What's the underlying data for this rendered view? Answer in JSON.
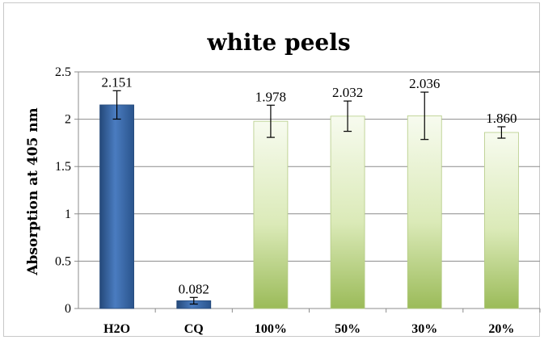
{
  "chart_data": {
    "type": "bar",
    "title": "white peels",
    "xlabel": "",
    "ylabel": "Absorption at 405 nm",
    "ylim": [
      0,
      2.5
    ],
    "yticks": [
      "0",
      "0.5",
      "1",
      "1.5",
      "2",
      "2.5"
    ],
    "grid": true,
    "categories": [
      "H2O",
      "CQ",
      "100%",
      "50%",
      "30%",
      "20%"
    ],
    "values": [
      2.151,
      0.082,
      1.978,
      2.032,
      2.036,
      1.86
    ],
    "value_labels": [
      "2.151",
      "0.082",
      "1.978",
      "2.032",
      "2.036",
      "1.860"
    ],
    "error": [
      0.15,
      0.035,
      0.17,
      0.16,
      0.25,
      0.06
    ],
    "bar_colors": [
      "#2f5e99",
      "#2f5e99",
      "#9bbb59",
      "#9bbb59",
      "#9bbb59",
      "#9bbb59"
    ]
  }
}
